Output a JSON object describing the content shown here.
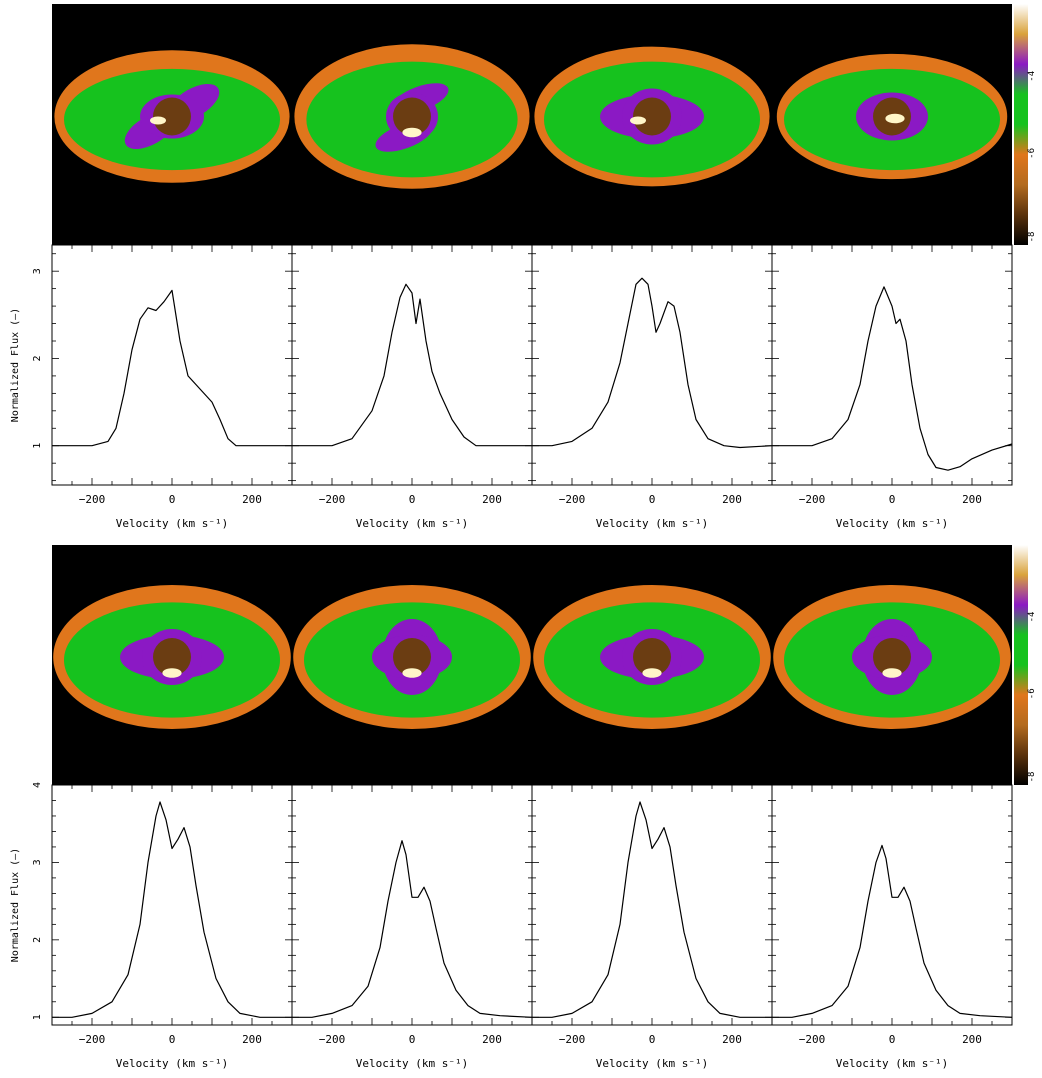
{
  "colors": {
    "background": "#000000",
    "envelope": "#e0761c",
    "disk": "#16c21e",
    "inner": "#8b19c4",
    "star": "#6b3d12",
    "hot": "#fff6c8",
    "line": "#000000"
  },
  "colorbar": {
    "stops": [
      "#000000",
      "#5a320c",
      "#b36b1f",
      "#e0761c",
      "#16c21e",
      "#16c21e",
      "#8b19c4",
      "#d9a23b",
      "#ffffff"
    ],
    "tick_labels": [
      "-8",
      "-6",
      "-4"
    ]
  },
  "chart_data": [
    {
      "type": "line",
      "group": "top",
      "xlabel": "Velocity  (km s⁻¹)",
      "ylabel": "Normalized Flux  (–)",
      "xlim": [
        -300,
        300
      ],
      "ylim": [
        0.55,
        3.3
      ],
      "xticks": [
        -200,
        0,
        200
      ],
      "yticks": [
        1,
        2,
        3
      ],
      "panels": [
        {
          "images": {
            "envelope": [
              0.98,
              0.55
            ],
            "disk": [
              0.9,
              0.42
            ],
            "lobes": "diagonal",
            "hot": "left"
          },
          "x": [
            -300,
            -200,
            -160,
            -140,
            -120,
            -100,
            -80,
            -60,
            -40,
            -20,
            0,
            20,
            40,
            60,
            80,
            100,
            120,
            140,
            160,
            180,
            200,
            250,
            300
          ],
          "y": [
            1.0,
            1.0,
            1.05,
            1.2,
            1.6,
            2.1,
            2.45,
            2.58,
            2.55,
            2.65,
            2.78,
            2.2,
            1.8,
            1.7,
            1.6,
            1.5,
            1.3,
            1.08,
            1.0,
            1.0,
            1.0,
            1.0,
            1.0
          ]
        },
        {
          "images": {
            "envelope": [
              0.98,
              0.6
            ],
            "disk": [
              0.88,
              0.48
            ],
            "lobes": "twisted",
            "hot": "bottom"
          },
          "x": [
            -300,
            -200,
            -150,
            -100,
            -70,
            -50,
            -30,
            -15,
            0,
            10,
            20,
            35,
            50,
            70,
            100,
            130,
            160,
            200,
            250,
            300
          ],
          "y": [
            1.0,
            1.0,
            1.08,
            1.4,
            1.8,
            2.3,
            2.7,
            2.85,
            2.75,
            2.4,
            2.68,
            2.2,
            1.85,
            1.6,
            1.3,
            1.1,
            1.0,
            1.0,
            1.0,
            1.0
          ]
        },
        {
          "images": {
            "envelope": [
              0.98,
              0.58
            ],
            "disk": [
              0.9,
              0.48
            ],
            "lobes": "wide",
            "hot": "left"
          },
          "x": [
            -300,
            -250,
            -200,
            -150,
            -110,
            -80,
            -60,
            -40,
            -25,
            -10,
            0,
            10,
            20,
            40,
            55,
            70,
            90,
            110,
            140,
            180,
            220,
            300
          ],
          "y": [
            1.0,
            1.0,
            1.05,
            1.2,
            1.5,
            1.95,
            2.4,
            2.85,
            2.92,
            2.85,
            2.6,
            2.3,
            2.4,
            2.65,
            2.6,
            2.3,
            1.7,
            1.3,
            1.08,
            1.0,
            0.98,
            1.0
          ]
        },
        {
          "images": {
            "envelope": [
              0.96,
              0.52
            ],
            "disk": [
              0.9,
              0.42
            ],
            "lobes": "compact",
            "hot": "center"
          },
          "x": [
            -300,
            -200,
            -150,
            -110,
            -80,
            -60,
            -40,
            -20,
            0,
            10,
            20,
            35,
            50,
            70,
            90,
            110,
            140,
            170,
            200,
            250,
            300
          ],
          "y": [
            1.0,
            1.0,
            1.08,
            1.3,
            1.7,
            2.2,
            2.6,
            2.82,
            2.6,
            2.4,
            2.45,
            2.2,
            1.7,
            1.2,
            0.9,
            0.75,
            0.72,
            0.76,
            0.85,
            0.95,
            1.02
          ]
        }
      ]
    },
    {
      "type": "line",
      "group": "bottom",
      "xlabel": "Velocity  (km s⁻¹)",
      "ylabel": "Normalized Flux  (–)",
      "xlim": [
        -300,
        300
      ],
      "ylim": [
        0.9,
        4.0
      ],
      "xticks": [
        -200,
        0,
        200
      ],
      "yticks": [
        1,
        2,
        3,
        4
      ],
      "panels": [
        {
          "images": {
            "envelope": [
              0.99,
              0.6
            ],
            "disk": [
              0.9,
              0.48
            ],
            "lobes": "wide",
            "hot": "bottom"
          },
          "x": [
            -300,
            -250,
            -200,
            -150,
            -110,
            -80,
            -60,
            -40,
            -30,
            -15,
            0,
            15,
            30,
            45,
            60,
            80,
            110,
            140,
            170,
            220,
            300
          ],
          "y": [
            1.0,
            1.0,
            1.05,
            1.2,
            1.55,
            2.2,
            3.0,
            3.6,
            3.78,
            3.55,
            3.18,
            3.3,
            3.45,
            3.2,
            2.7,
            2.1,
            1.5,
            1.2,
            1.05,
            1.0,
            1.0
          ]
        },
        {
          "images": {
            "envelope": [
              0.99,
              0.6
            ],
            "disk": [
              0.9,
              0.48
            ],
            "lobes": "vertical",
            "hot": "bottom"
          },
          "x": [
            -300,
            -250,
            -200,
            -150,
            -110,
            -80,
            -60,
            -40,
            -25,
            -15,
            0,
            15,
            30,
            45,
            60,
            80,
            110,
            140,
            170,
            220,
            300
          ],
          "y": [
            1.0,
            1.0,
            1.05,
            1.15,
            1.4,
            1.9,
            2.5,
            3.0,
            3.28,
            3.1,
            2.55,
            2.55,
            2.68,
            2.5,
            2.15,
            1.7,
            1.35,
            1.15,
            1.05,
            1.02,
            1.0
          ]
        },
        {
          "images": {
            "envelope": [
              0.99,
              0.6
            ],
            "disk": [
              0.9,
              0.48
            ],
            "lobes": "wide",
            "hot": "bottom"
          },
          "x": [
            -300,
            -250,
            -200,
            -150,
            -110,
            -80,
            -60,
            -40,
            -30,
            -15,
            0,
            15,
            30,
            45,
            60,
            80,
            110,
            140,
            170,
            220,
            300
          ],
          "y": [
            1.0,
            1.0,
            1.05,
            1.2,
            1.55,
            2.2,
            3.0,
            3.6,
            3.78,
            3.55,
            3.18,
            3.3,
            3.45,
            3.2,
            2.7,
            2.1,
            1.5,
            1.2,
            1.05,
            1.0,
            1.0
          ]
        },
        {
          "images": {
            "envelope": [
              0.99,
              0.6
            ],
            "disk": [
              0.9,
              0.48
            ],
            "lobes": "vertical",
            "hot": "bottom"
          },
          "x": [
            -300,
            -250,
            -200,
            -150,
            -110,
            -80,
            -60,
            -40,
            -25,
            -15,
            0,
            15,
            30,
            45,
            60,
            80,
            110,
            140,
            170,
            220,
            300
          ],
          "y": [
            1.0,
            1.0,
            1.05,
            1.15,
            1.4,
            1.9,
            2.5,
            3.0,
            3.22,
            3.05,
            2.55,
            2.55,
            2.68,
            2.5,
            2.15,
            1.7,
            1.35,
            1.15,
            1.05,
            1.02,
            1.0
          ]
        }
      ]
    }
  ]
}
